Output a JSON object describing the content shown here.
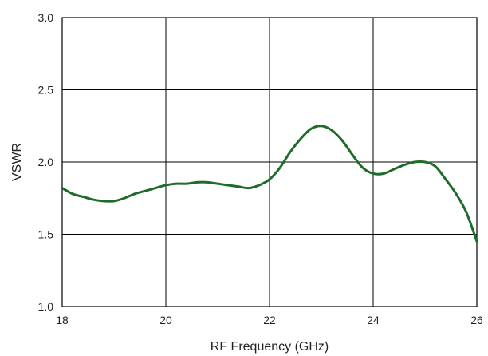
{
  "chart_data": {
    "type": "line",
    "title": "",
    "xlabel": "RF Frequency (GHz)",
    "ylabel": "VSWR",
    "xlim": [
      18,
      26
    ],
    "ylim": [
      1.0,
      3.0
    ],
    "x_ticks": [
      18,
      20,
      22,
      24,
      26
    ],
    "y_ticks": [
      1.0,
      1.5,
      2.0,
      2.5,
      3.0
    ],
    "x_tick_labels": [
      "18",
      "20",
      "22",
      "24",
      "26"
    ],
    "y_tick_labels": [
      "1.0",
      "1.5",
      "2.0",
      "2.5",
      "3.0"
    ],
    "grid": true,
    "line_color": "#1f6b2a",
    "series": [
      {
        "x": [
          18.0,
          18.2,
          18.4,
          18.6,
          18.8,
          19.0,
          19.2,
          19.4,
          19.6,
          19.8,
          20.0,
          20.2,
          20.4,
          20.6,
          20.8,
          21.0,
          21.2,
          21.4,
          21.6,
          21.8,
          22.0,
          22.2,
          22.4,
          22.6,
          22.8,
          23.0,
          23.2,
          23.4,
          23.6,
          23.8,
          24.0,
          24.2,
          24.4,
          24.6,
          24.8,
          25.0,
          25.2,
          25.4,
          25.6,
          25.8,
          26.0
        ],
        "y": [
          1.82,
          1.78,
          1.76,
          1.74,
          1.73,
          1.73,
          1.75,
          1.78,
          1.8,
          1.82,
          1.84,
          1.85,
          1.85,
          1.86,
          1.86,
          1.85,
          1.84,
          1.83,
          1.82,
          1.84,
          1.88,
          1.96,
          2.07,
          2.16,
          2.23,
          2.25,
          2.22,
          2.15,
          2.05,
          1.96,
          1.92,
          1.92,
          1.95,
          1.98,
          2.0,
          2.0,
          1.97,
          1.88,
          1.78,
          1.65,
          1.45
        ]
      }
    ]
  }
}
